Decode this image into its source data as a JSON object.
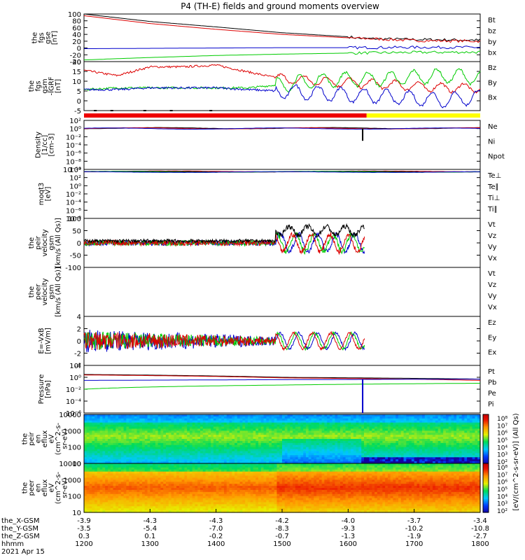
{
  "title": "P4 (TH-E) fields and ground moments overview",
  "colors": {
    "black": "#000000",
    "red": "#dd0000",
    "green": "#00cc00",
    "blue": "#0000cc",
    "yellow": "#ffff00"
  },
  "chart_data": [
    {
      "type": "line",
      "ylabel": [
        "the",
        "fgs",
        "gse",
        "[nT]"
      ],
      "ylim": [
        -40,
        100
      ],
      "yticks": [
        "100",
        "80",
        "60",
        "40",
        "20",
        "0",
        "-20",
        "-40"
      ],
      "legend": [
        {
          "label": "Bt",
          "color": "black"
        },
        {
          "label": "bz",
          "color": "red"
        },
        {
          "label": "by",
          "color": "green"
        },
        {
          "label": "bx",
          "color": "blue"
        }
      ],
      "series": [
        {
          "name": "Bt",
          "x": [
            1200,
            1300,
            1400,
            1500,
            1600,
            1620,
            1700,
            1800
          ],
          "y": [
            100,
            78,
            62,
            45,
            33,
            28,
            25,
            23
          ]
        },
        {
          "name": "bz",
          "x": [
            1200,
            1300,
            1400,
            1500,
            1600,
            1700,
            1800
          ],
          "y": [
            95,
            72,
            55,
            40,
            30,
            22,
            20
          ]
        },
        {
          "name": "by",
          "x": [
            1200,
            1300,
            1400,
            1500,
            1600,
            1700,
            1800
          ],
          "y": [
            -35,
            -28,
            -22,
            -18,
            -15,
            -13,
            -12
          ]
        },
        {
          "name": "bx",
          "x": [
            1200,
            1300,
            1400,
            1500,
            1600,
            1700,
            1800
          ],
          "y": [
            -2,
            -1,
            0,
            1,
            1,
            2,
            2
          ]
        }
      ]
    },
    {
      "type": "line",
      "ylabel": [
        "the",
        "fgs",
        "gsm",
        "-IGRF",
        "[nT]"
      ],
      "ylim": [
        -8,
        20
      ],
      "yticks": [
        "20",
        "15",
        "10",
        "5",
        "0",
        "-5"
      ],
      "legend": [
        {
          "label": "Bz",
          "color": "red"
        },
        {
          "label": "By",
          "color": "green"
        },
        {
          "label": "Bx",
          "color": "blue"
        }
      ],
      "series": [
        {
          "name": "Bz",
          "x": [
            1200,
            1250,
            1300,
            1350,
            1400,
            1450,
            1500,
            1550,
            1600,
            1650,
            1700,
            1750,
            1800
          ],
          "y": [
            15,
            12,
            17,
            17,
            18,
            14,
            10,
            9,
            8,
            7,
            6,
            5,
            5
          ]
        },
        {
          "name": "By",
          "x": [
            1200,
            1250,
            1300,
            1350,
            1400,
            1450,
            1500,
            1550,
            1600,
            1650,
            1700,
            1750,
            1800
          ],
          "y": [
            4,
            5,
            5,
            5,
            5,
            5,
            7,
            9,
            10,
            10,
            11,
            12,
            11
          ]
        },
        {
          "name": "Bx",
          "x": [
            1200,
            1250,
            1300,
            1350,
            1400,
            1450,
            1500,
            1550,
            1600,
            1650,
            1700,
            1750,
            1800
          ],
          "y": [
            4,
            4,
            5,
            5,
            5,
            4,
            3,
            2,
            1,
            0,
            -1,
            -2,
            0
          ]
        }
      ]
    },
    {
      "type": "line",
      "ylabel": [
        "Density",
        "[1/cc]",
        "[cm-3]"
      ],
      "scale": "log",
      "yticks": [
        "10²",
        "10⁰",
        "10⁻²",
        "10⁻⁴",
        "10⁻⁶",
        "10⁻⁸",
        "10⁻¹⁰"
      ],
      "legend": [
        {
          "label": "Ne",
          "color": "red"
        },
        {
          "label": "Ni",
          "color": "black"
        },
        {
          "label": "Npot",
          "color": "blue"
        }
      ],
      "series": [
        {
          "name": "Ne",
          "x": [
            1200,
            1400,
            1600,
            1800
          ],
          "y": [
            1.2,
            1.0,
            1.5,
            1.1
          ]
        },
        {
          "name": "Ni",
          "x": [
            1200,
            1400,
            1600,
            1800
          ],
          "y": [
            1.0,
            0.9,
            1.2,
            1.0
          ]
        }
      ]
    },
    {
      "type": "line",
      "ylabel": [
        "moqt3",
        "[eV]"
      ],
      "scale": "log",
      "yticks": [
        "10⁴",
        "10²",
        "10⁰",
        "10⁻²",
        "10⁻⁴",
        "10⁻⁶",
        "10⁻⁸"
      ],
      "legend": [
        {
          "label": "Te⊥",
          "color": "red"
        },
        {
          "label": "Te∥",
          "color": "black"
        },
        {
          "label": "Ti⊥",
          "color": "green"
        },
        {
          "label": "Ti∥",
          "color": "green"
        }
      ],
      "series": [
        {
          "name": "Te",
          "x": [
            1200,
            1500,
            1800
          ],
          "y": [
            5000,
            4000,
            6000
          ]
        },
        {
          "name": "Ti",
          "x": [
            1200,
            1500,
            1800
          ],
          "y": [
            8000,
            7000,
            9000
          ]
        }
      ]
    },
    {
      "type": "line",
      "ylabel": [
        "the",
        "peir",
        "velocity",
        "gsm",
        "[km/s (All Qs)]"
      ],
      "ylim": [
        -100,
        100
      ],
      "yticks": [
        "100",
        "50",
        "0",
        "-50",
        "-100"
      ],
      "legend": [
        {
          "label": "Vt",
          "color": "black"
        },
        {
          "label": "Vz",
          "color": "red"
        },
        {
          "label": "Vy",
          "color": "green"
        },
        {
          "label": "Vx",
          "color": "blue"
        }
      ],
      "series": [
        {
          "name": "Vt",
          "x": [
            1200,
            1400,
            1450,
            1500,
            1550,
            1600,
            1625
          ],
          "y": [
            5,
            8,
            15,
            70,
            60,
            55,
            40
          ]
        },
        {
          "name": "Vz",
          "x": [
            1200,
            1400,
            1500,
            1550,
            1625
          ],
          "y": [
            0,
            0,
            20,
            -20,
            10
          ]
        }
      ]
    },
    {
      "type": "line",
      "ylabel": [
        "the",
        "peer",
        "velocity",
        "gsm",
        "[km/s (All Qs)]"
      ],
      "legend": [
        {
          "label": "Vt",
          "color": "black"
        },
        {
          "label": "Vz",
          "color": "red"
        },
        {
          "label": "Vy",
          "color": "green"
        },
        {
          "label": "Vx",
          "color": "blue"
        }
      ],
      "series": []
    },
    {
      "type": "line",
      "ylabel": [
        "E=-VxB",
        "[mV/m]"
      ],
      "ylim": [
        -4,
        4
      ],
      "yticks": [
        "4",
        "2",
        "0",
        "-2",
        "-4"
      ],
      "legend": [
        {
          "label": "Ez",
          "color": "red"
        },
        {
          "label": "Ey",
          "color": "green"
        },
        {
          "label": "Ex",
          "color": "blue"
        }
      ],
      "series": [
        {
          "name": "Ez",
          "x": [
            1200,
            1400,
            1500,
            1550,
            1625
          ],
          "y": [
            0,
            0,
            2,
            -2,
            0
          ]
        }
      ]
    },
    {
      "type": "line",
      "ylabel": [
        "Pressure",
        "[nPa]"
      ],
      "scale": "log",
      "yticks": [
        "10²",
        "10⁰",
        "10⁻²",
        "10⁻⁴",
        "10⁻⁶"
      ],
      "legend": [
        {
          "label": "Pt",
          "color": "black"
        },
        {
          "label": "Pb",
          "color": "red"
        },
        {
          "label": "Pe",
          "color": "green"
        },
        {
          "label": "Pi",
          "color": "blue"
        }
      ],
      "series": [
        {
          "name": "Pt",
          "x": [
            1200,
            1500,
            1800
          ],
          "y": [
            3,
            1,
            0.5
          ]
        },
        {
          "name": "Pb",
          "x": [
            1200,
            1500,
            1800
          ],
          "y": [
            2.5,
            0.8,
            0.3
          ]
        },
        {
          "name": "Pe",
          "x": [
            1200,
            1500,
            1800
          ],
          "y": [
            0.01,
            0.05,
            0.1
          ]
        },
        {
          "name": "Pi",
          "x": [
            1200,
            1500,
            1800
          ],
          "y": [
            0.3,
            0.4,
            0.5
          ]
        }
      ]
    },
    {
      "type": "heatmap",
      "ylabel": [
        "the",
        "peir",
        "en",
        "eflux",
        "eV",
        "(cm^2-s-",
        "sr-eV)"
      ],
      "yticks": [
        "10000",
        "1000",
        "100",
        "10"
      ]
    },
    {
      "type": "heatmap",
      "ylabel": [
        "the",
        "peer",
        "en",
        "eflux",
        "eV",
        "(cm^2-s-",
        "sr-eV)"
      ],
      "yticks": [
        "10000",
        "1000",
        "100",
        "10"
      ]
    }
  ],
  "colorbar": {
    "label": "[eV/(cm^2-s-sr-eV)] (All Qs)",
    "ticks": [
      "10⁸",
      "10⁷",
      "10⁶",
      "10⁵",
      "10⁴",
      "10³",
      "10²"
    ]
  },
  "x_axis": {
    "rows": [
      {
        "label": "the_X-GSM",
        "values": [
          "-3.9",
          "-4.3",
          "-4.3",
          "-4.2",
          "-4.0",
          "-3.7",
          "-3.4"
        ]
      },
      {
        "label": "the_Y-GSM",
        "values": [
          "-3.5",
          "-5.4",
          "-7.0",
          "-8.3",
          "-9.3",
          "-10.2",
          "-10.8"
        ]
      },
      {
        "label": "the_Z-GSM",
        "values": [
          "0.3",
          "0.1",
          "-0.2",
          "-0.7",
          "-1.3",
          "-1.9",
          "-2.7"
        ]
      },
      {
        "label": "hhmm",
        "values": [
          "1200",
          "1300",
          "1400",
          "1500",
          "1600",
          "1700",
          "1800"
        ]
      }
    ],
    "date": "2021 Apr 15"
  }
}
